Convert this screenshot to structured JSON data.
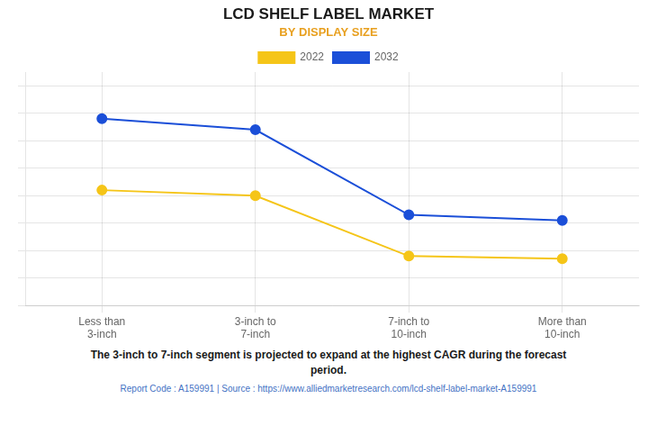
{
  "chart_data": {
    "type": "line",
    "title": "LCD SHELF LABEL MARKET",
    "subtitle": "BY DISPLAY SIZE",
    "categories": [
      "Less than\n3-inch",
      "3-inch to\n7-inch",
      "7-inch to\n10-inch",
      "More than\n10-inch"
    ],
    "series": [
      {
        "name": "2022",
        "color": "#F5C518",
        "marker": "o",
        "values": [
          0.62,
          0.6,
          0.38,
          0.37
        ]
      },
      {
        "name": "2032",
        "color": "#1B4FD8",
        "marker": "o",
        "values": [
          0.88,
          0.84,
          0.53,
          0.51
        ]
      }
    ],
    "ylim": [
      0.2,
      1.05
    ],
    "yticks": [
      0.2,
      0.3,
      0.4,
      0.5,
      0.6,
      0.7,
      0.8,
      0.9,
      1.0
    ],
    "grid": true,
    "legend": "top",
    "tick_labels": "x",
    "annotations": [
      "The 3-inch to 7-inch segment is projected to expand at the highest CAGR during the forecast\nperiod.",
      "Report Code : A159991  |  Source : https://www.alliedmarketresearch.com/lcd-shelf-label-market-A159991"
    ]
  }
}
